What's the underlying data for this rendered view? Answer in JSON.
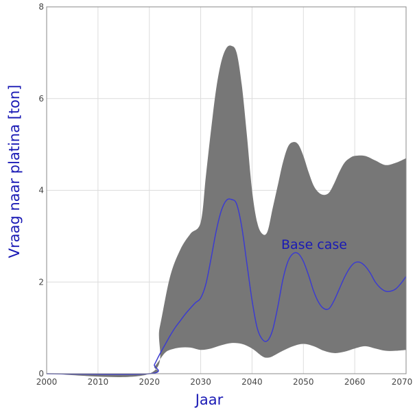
{
  "chart_data": {
    "type": "area",
    "xlabel": "Jaar",
    "ylabel": "Vraag naar platina [ton]",
    "xlim": [
      2000,
      2070
    ],
    "ylim": [
      0,
      8
    ],
    "xticks": [
      2000,
      2010,
      2020,
      2030,
      2040,
      2050,
      2060,
      2070
    ],
    "yticks": [
      0,
      2,
      4,
      6,
      8
    ],
    "grid": true,
    "annotation": "Base case",
    "colors": {
      "band": "#777777",
      "line": "#3b3bd0",
      "text": "#1a1ab5"
    },
    "band_upper": [
      [
        2000,
        0
      ],
      [
        2020,
        0
      ],
      [
        2022,
        1.0
      ],
      [
        2024,
        2.1
      ],
      [
        2026,
        2.7
      ],
      [
        2028,
        3.05
      ],
      [
        2030,
        3.3
      ],
      [
        2031,
        4.3
      ],
      [
        2032,
        5.3
      ],
      [
        2033,
        6.2
      ],
      [
        2034,
        6.8
      ],
      [
        2035,
        7.1
      ],
      [
        2036,
        7.15
      ],
      [
        2037,
        7.0
      ],
      [
        2038,
        6.3
      ],
      [
        2039,
        5.2
      ],
      [
        2040,
        4.0
      ],
      [
        2041,
        3.3
      ],
      [
        2042,
        3.05
      ],
      [
        2043,
        3.1
      ],
      [
        2044,
        3.6
      ],
      [
        2045,
        4.1
      ],
      [
        2046,
        4.6
      ],
      [
        2047,
        4.95
      ],
      [
        2048,
        5.05
      ],
      [
        2049,
        5.0
      ],
      [
        2050,
        4.75
      ],
      [
        2051,
        4.4
      ],
      [
        2052,
        4.1
      ],
      [
        2053,
        3.95
      ],
      [
        2054,
        3.9
      ],
      [
        2055,
        3.95
      ],
      [
        2056,
        4.15
      ],
      [
        2057,
        4.4
      ],
      [
        2058,
        4.6
      ],
      [
        2059,
        4.7
      ],
      [
        2060,
        4.75
      ],
      [
        2062,
        4.75
      ],
      [
        2064,
        4.65
      ],
      [
        2066,
        4.55
      ],
      [
        2068,
        4.6
      ],
      [
        2070,
        4.7
      ]
    ],
    "band_lower": [
      [
        2000,
        0
      ],
      [
        2020,
        0
      ],
      [
        2021,
        0.15
      ],
      [
        2022,
        0.3
      ],
      [
        2023,
        0.45
      ],
      [
        2024,
        0.52
      ],
      [
        2026,
        0.57
      ],
      [
        2028,
        0.57
      ],
      [
        2030,
        0.52
      ],
      [
        2032,
        0.55
      ],
      [
        2034,
        0.62
      ],
      [
        2036,
        0.67
      ],
      [
        2038,
        0.65
      ],
      [
        2040,
        0.55
      ],
      [
        2042,
        0.38
      ],
      [
        2043,
        0.35
      ],
      [
        2044,
        0.38
      ],
      [
        2046,
        0.5
      ],
      [
        2048,
        0.6
      ],
      [
        2050,
        0.65
      ],
      [
        2052,
        0.6
      ],
      [
        2054,
        0.5
      ],
      [
        2056,
        0.45
      ],
      [
        2058,
        0.48
      ],
      [
        2060,
        0.55
      ],
      [
        2062,
        0.6
      ],
      [
        2064,
        0.55
      ],
      [
        2066,
        0.5
      ],
      [
        2068,
        0.5
      ],
      [
        2070,
        0.52
      ]
    ],
    "series": [
      {
        "values": [
          [
            2000,
            0
          ],
          [
            2020,
            0
          ],
          [
            2021,
            0.2
          ],
          [
            2022,
            0.42
          ],
          [
            2023,
            0.62
          ],
          [
            2024,
            0.82
          ],
          [
            2025,
            1.0
          ],
          [
            2026,
            1.15
          ],
          [
            2027,
            1.3
          ],
          [
            2028,
            1.43
          ],
          [
            2029,
            1.55
          ],
          [
            2030,
            1.65
          ],
          [
            2031,
            1.95
          ],
          [
            2032,
            2.5
          ],
          [
            2033,
            3.1
          ],
          [
            2034,
            3.55
          ],
          [
            2035,
            3.78
          ],
          [
            2036,
            3.8
          ],
          [
            2037,
            3.7
          ],
          [
            2038,
            3.2
          ],
          [
            2039,
            2.4
          ],
          [
            2040,
            1.6
          ],
          [
            2041,
            1.0
          ],
          [
            2042,
            0.75
          ],
          [
            2043,
            0.72
          ],
          [
            2044,
            0.95
          ],
          [
            2045,
            1.45
          ],
          [
            2046,
            2.05
          ],
          [
            2047,
            2.45
          ],
          [
            2048,
            2.62
          ],
          [
            2049,
            2.62
          ],
          [
            2050,
            2.45
          ],
          [
            2051,
            2.15
          ],
          [
            2052,
            1.8
          ],
          [
            2053,
            1.55
          ],
          [
            2054,
            1.42
          ],
          [
            2055,
            1.42
          ],
          [
            2056,
            1.6
          ],
          [
            2057,
            1.85
          ],
          [
            2058,
            2.1
          ],
          [
            2059,
            2.3
          ],
          [
            2060,
            2.42
          ],
          [
            2061,
            2.43
          ],
          [
            2062,
            2.35
          ],
          [
            2063,
            2.2
          ],
          [
            2064,
            2.0
          ],
          [
            2065,
            1.87
          ],
          [
            2066,
            1.8
          ],
          [
            2067,
            1.8
          ],
          [
            2068,
            1.85
          ],
          [
            2069,
            1.97
          ],
          [
            2070,
            2.12
          ]
        ]
      }
    ]
  }
}
